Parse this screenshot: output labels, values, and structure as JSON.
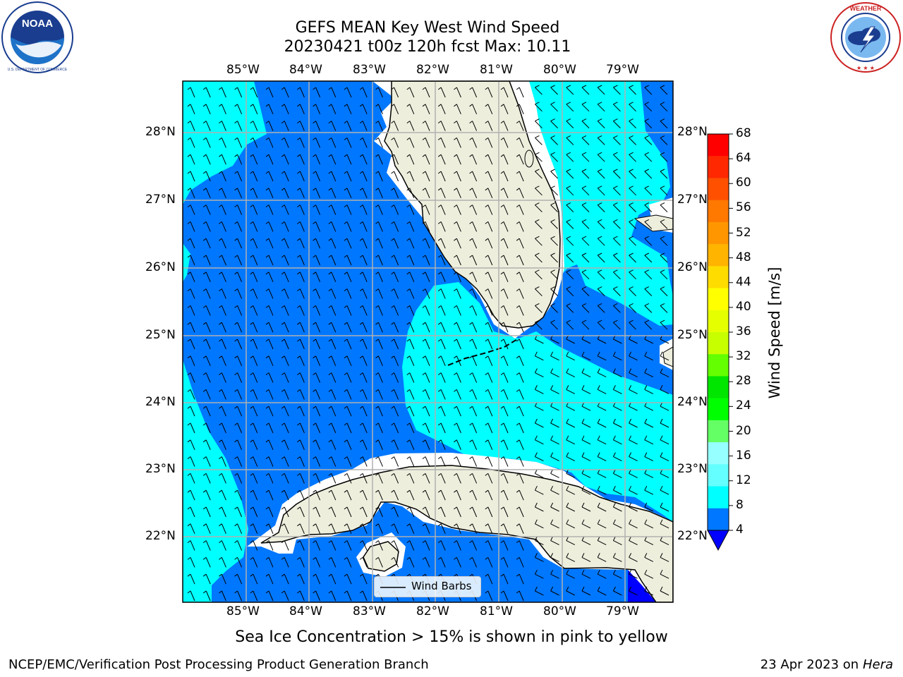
{
  "title": {
    "line1": "GEFS MEAN Key West Wind Speed",
    "line2": "20230421 t00z 120h fcst   Max: 10.11"
  },
  "logos": {
    "left": {
      "name": "NOAA",
      "text": "NOAA",
      "ring_text": "NATIONAL OCEANIC AND ATMOSPHERIC ADMINISTRATION · U.S. DEPARTMENT OF COMMERCE"
    },
    "right": {
      "name": "National Weather Service",
      "ring_text": "NATIONAL WEATHER SERVICE"
    }
  },
  "map": {
    "lon_labels": [
      "85°W",
      "84°W",
      "83°W",
      "82°W",
      "81°W",
      "80°W",
      "79°W"
    ],
    "lat_labels": [
      "28°N",
      "27°N",
      "26°N",
      "25°N",
      "24°N",
      "23°N",
      "22°N"
    ],
    "legend_label": "Wind Barbs",
    "colors": {
      "land": "#EEEEDD",
      "speed_4_8": "#0077FF",
      "speed_8_12": "#00FFFF",
      "speed_below_4": "#0000FF",
      "grid": "#B0B0B0"
    }
  },
  "colorbar": {
    "label": "Wind Speed [m/s]",
    "ticks": [
      "68",
      "64",
      "60",
      "56",
      "52",
      "48",
      "44",
      "40",
      "36",
      "32",
      "28",
      "24",
      "20",
      "16",
      "12",
      "8",
      "4"
    ],
    "colors_top_to_bottom": [
      "#FF0000",
      "#FF2800",
      "#FF5000",
      "#FF7800",
      "#FF9600",
      "#FFB400",
      "#FFDC00",
      "#FFFF00",
      "#E6FF00",
      "#C8FF00",
      "#64FF00",
      "#00E600",
      "#00FF00",
      "#64FF64",
      "#96FFFF",
      "#64FFFF",
      "#00FFFF",
      "#0077FF"
    ],
    "extend_color": "#0000FF"
  },
  "caption": "Sea Ice Concentration > 15% is shown in pink to yellow",
  "footer": {
    "left": "NCEP/EMC/Verification Post Processing Product Generation Branch",
    "right_prefix": "23 Apr 2023 on ",
    "right_italic": "Hera"
  }
}
